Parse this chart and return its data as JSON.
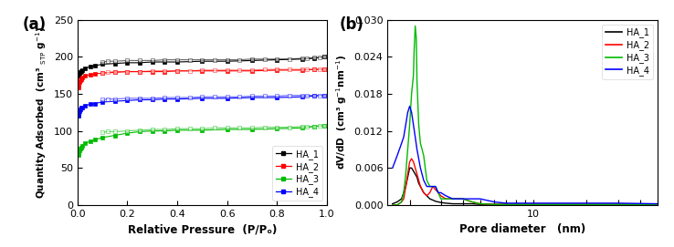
{
  "panel_a": {
    "xlabel": "Relative Pressure  (P/Pₒ)",
    "ylim": [
      0,
      250
    ],
    "xlim": [
      0.0,
      1.0
    ],
    "yticks": [
      0,
      50,
      100,
      150,
      200,
      250
    ],
    "xticks": [
      0.0,
      0.2,
      0.4,
      0.6,
      0.8,
      1.0
    ],
    "series": {
      "HA_1": {
        "color": "#000000",
        "adsorption_x": [
          0.003,
          0.005,
          0.008,
          0.01,
          0.015,
          0.02,
          0.03,
          0.05,
          0.07,
          0.1,
          0.15,
          0.2,
          0.25,
          0.3,
          0.35,
          0.4,
          0.5,
          0.6,
          0.7,
          0.8,
          0.9,
          0.95,
          0.99
        ],
        "adsorption_y": [
          174,
          176,
          178,
          179,
          181,
          182,
          184,
          187,
          188,
          190,
          191,
          192,
          192,
          193,
          193,
          193,
          194,
          194,
          195,
          196,
          197,
          198,
          200
        ],
        "desorption_x": [
          0.99,
          0.97,
          0.95,
          0.92,
          0.9,
          0.85,
          0.8,
          0.75,
          0.7,
          0.65,
          0.6,
          0.55,
          0.5,
          0.45,
          0.4,
          0.35,
          0.3,
          0.25,
          0.2,
          0.15,
          0.12,
          0.1
        ],
        "desorption_y": [
          200,
          199,
          199,
          198,
          198,
          197,
          197,
          197,
          197,
          196,
          196,
          196,
          196,
          196,
          196,
          196,
          195,
          195,
          195,
          194,
          194,
          193
        ]
      },
      "HA_2": {
        "color": "#ff0000",
        "adsorption_x": [
          0.003,
          0.005,
          0.008,
          0.01,
          0.015,
          0.02,
          0.03,
          0.05,
          0.07,
          0.1,
          0.15,
          0.2,
          0.25,
          0.3,
          0.35,
          0.4,
          0.5,
          0.6,
          0.7,
          0.8,
          0.9,
          0.95,
          0.99
        ],
        "adsorption_y": [
          158,
          162,
          166,
          168,
          170,
          172,
          174,
          176,
          177,
          178,
          179,
          180,
          180,
          180,
          180,
          181,
          181,
          181,
          181,
          182,
          182,
          183,
          183
        ],
        "desorption_x": [
          0.99,
          0.97,
          0.95,
          0.92,
          0.9,
          0.85,
          0.8,
          0.75,
          0.7,
          0.65,
          0.6,
          0.55,
          0.5,
          0.45,
          0.4,
          0.35,
          0.3,
          0.25,
          0.2,
          0.15,
          0.12,
          0.1
        ],
        "desorption_y": [
          183,
          183,
          183,
          183,
          183,
          183,
          183,
          183,
          182,
          182,
          182,
          182,
          182,
          181,
          181,
          181,
          181,
          180,
          180,
          180,
          179,
          178
        ]
      },
      "HA_3": {
        "color": "#00bb00",
        "adsorption_x": [
          0.003,
          0.005,
          0.008,
          0.01,
          0.015,
          0.02,
          0.03,
          0.05,
          0.07,
          0.1,
          0.15,
          0.2,
          0.25,
          0.3,
          0.35,
          0.4,
          0.5,
          0.6,
          0.7,
          0.8,
          0.9,
          0.95,
          0.99
        ],
        "adsorption_y": [
          67,
          70,
          74,
          76,
          78,
          80,
          83,
          86,
          88,
          91,
          94,
          97,
          99,
          100,
          100,
          101,
          101,
          102,
          102,
          103,
          104,
          106,
          107
        ],
        "desorption_x": [
          0.99,
          0.97,
          0.95,
          0.92,
          0.9,
          0.85,
          0.8,
          0.75,
          0.7,
          0.65,
          0.6,
          0.55,
          0.5,
          0.45,
          0.4,
          0.35,
          0.3,
          0.25,
          0.2,
          0.15,
          0.12,
          0.1
        ],
        "desorption_y": [
          107,
          107,
          106,
          106,
          106,
          105,
          105,
          105,
          104,
          104,
          104,
          104,
          103,
          103,
          103,
          102,
          102,
          101,
          100,
          99,
          99,
          98
        ]
      },
      "HA_4": {
        "color": "#0000ff",
        "adsorption_x": [
          0.003,
          0.005,
          0.008,
          0.01,
          0.015,
          0.02,
          0.03,
          0.05,
          0.07,
          0.1,
          0.15,
          0.2,
          0.25,
          0.3,
          0.35,
          0.4,
          0.5,
          0.6,
          0.7,
          0.8,
          0.9,
          0.95,
          0.99
        ],
        "adsorption_y": [
          120,
          123,
          127,
          129,
          131,
          132,
          134,
          136,
          137,
          139,
          140,
          141,
          142,
          142,
          143,
          143,
          144,
          144,
          145,
          145,
          146,
          147,
          148
        ],
        "desorption_x": [
          0.99,
          0.97,
          0.95,
          0.92,
          0.9,
          0.85,
          0.8,
          0.75,
          0.7,
          0.65,
          0.6,
          0.55,
          0.5,
          0.45,
          0.4,
          0.35,
          0.3,
          0.25,
          0.2,
          0.15,
          0.12,
          0.1
        ],
        "desorption_y": [
          148,
          148,
          148,
          148,
          148,
          148,
          147,
          147,
          147,
          146,
          146,
          146,
          146,
          145,
          145,
          145,
          144,
          144,
          144,
          143,
          143,
          142
        ]
      }
    }
  },
  "panel_b": {
    "xlabel": "Pore diameter   (nm)",
    "ylim": [
      0.0,
      0.03
    ],
    "xlim_log": [
      1.5,
      50
    ],
    "yticks": [
      0.0,
      0.006,
      0.012,
      0.018,
      0.024,
      0.03
    ],
    "series": {
      "HA_1": {
        "color": "#000000",
        "x": [
          1.6,
          1.7,
          1.8,
          1.85,
          1.9,
          1.95,
          2.0,
          2.05,
          2.1,
          2.15,
          2.2,
          2.25,
          2.3,
          2.4,
          2.5,
          2.6,
          2.7,
          2.8,
          2.9,
          3.0,
          3.2,
          3.5,
          4.0,
          4.5,
          5.0,
          6.0,
          7.0,
          8.0,
          9.0,
          10.0,
          12.0,
          15.0,
          20.0,
          30.0,
          50.0
        ],
        "y": [
          0.0002,
          0.0005,
          0.001,
          0.002,
          0.003,
          0.0045,
          0.006,
          0.006,
          0.0055,
          0.005,
          0.0045,
          0.0035,
          0.003,
          0.002,
          0.0015,
          0.001,
          0.0008,
          0.0006,
          0.0005,
          0.0004,
          0.0003,
          0.0002,
          0.0002,
          0.0002,
          0.0001,
          0.0001,
          0.0001,
          0.0001,
          0.0001,
          0.0001,
          0.0001,
          0.0001,
          0.0001,
          0.0001,
          0.0001
        ]
      },
      "HA_2": {
        "color": "#ff0000",
        "x": [
          1.6,
          1.7,
          1.8,
          1.85,
          1.9,
          1.95,
          2.0,
          2.05,
          2.1,
          2.15,
          2.2,
          2.25,
          2.3,
          2.4,
          2.5,
          2.6,
          2.7,
          2.8,
          2.9,
          3.0,
          3.2,
          3.5,
          4.0,
          4.5,
          5.0,
          6.0,
          7.0,
          8.0,
          9.0,
          10.0,
          12.0,
          15.0,
          20.0,
          30.0,
          50.0
        ],
        "y": [
          0.0,
          0.0,
          0.0005,
          0.001,
          0.003,
          0.005,
          0.007,
          0.0075,
          0.007,
          0.006,
          0.005,
          0.004,
          0.003,
          0.002,
          0.0015,
          0.002,
          0.003,
          0.0025,
          0.002,
          0.0015,
          0.001,
          0.001,
          0.001,
          0.0005,
          0.0002,
          0.0001,
          0.0001,
          0.0001,
          0.0001,
          0.0001,
          0.0001,
          0.0001,
          0.0001,
          0.0001,
          0.0001
        ]
      },
      "HA_3": {
        "color": "#00bb00",
        "x": [
          1.6,
          1.7,
          1.8,
          1.85,
          1.9,
          1.95,
          2.0,
          2.05,
          2.1,
          2.12,
          2.15,
          2.18,
          2.2,
          2.25,
          2.3,
          2.35,
          2.4,
          2.5,
          2.6,
          2.7,
          2.8,
          2.9,
          3.0,
          3.2,
          3.5,
          4.0,
          4.5,
          5.0,
          6.0,
          7.0,
          8.0,
          9.0,
          10.0,
          12.0,
          15.0,
          20.0,
          30.0,
          50.0
        ],
        "y": [
          0.0,
          0.0,
          0.0005,
          0.002,
          0.005,
          0.009,
          0.013,
          0.018,
          0.021,
          0.025,
          0.029,
          0.027,
          0.02,
          0.013,
          0.01,
          0.009,
          0.008,
          0.004,
          0.003,
          0.003,
          0.003,
          0.002,
          0.001,
          0.001,
          0.001,
          0.001,
          0.0005,
          0.0002,
          0.0001,
          0.0001,
          0.0001,
          0.0001,
          0.0001,
          0.0001,
          0.0001,
          0.0001,
          0.0001,
          0.0001
        ]
      },
      "HA_4": {
        "color": "#0000ff",
        "x": [
          1.6,
          1.65,
          1.7,
          1.75,
          1.8,
          1.85,
          1.9,
          1.95,
          2.0,
          2.05,
          2.1,
          2.15,
          2.2,
          2.3,
          2.4,
          2.5,
          2.6,
          2.7,
          2.8,
          2.9,
          3.0,
          3.2,
          3.5,
          4.0,
          4.5,
          5.0,
          6.0,
          7.0,
          8.0,
          9.0,
          10.0,
          12.0,
          14.0,
          15.0,
          20.0,
          30.0,
          50.0
        ],
        "y": [
          0.006,
          0.007,
          0.008,
          0.009,
          0.01,
          0.011,
          0.013,
          0.015,
          0.016,
          0.015,
          0.013,
          0.011,
          0.009,
          0.006,
          0.004,
          0.003,
          0.003,
          0.003,
          0.003,
          0.002,
          0.002,
          0.0015,
          0.001,
          0.001,
          0.001,
          0.001,
          0.0005,
          0.0003,
          0.0003,
          0.0003,
          0.0003,
          0.0003,
          0.0003,
          0.0003,
          0.0003,
          0.0003,
          0.0002
        ]
      }
    }
  },
  "legend_labels": [
    "HA_1",
    "HA_2",
    "HA_3",
    "HA_4"
  ],
  "legend_colors": [
    "#000000",
    "#ff0000",
    "#00bb00",
    "#0000ff"
  ]
}
